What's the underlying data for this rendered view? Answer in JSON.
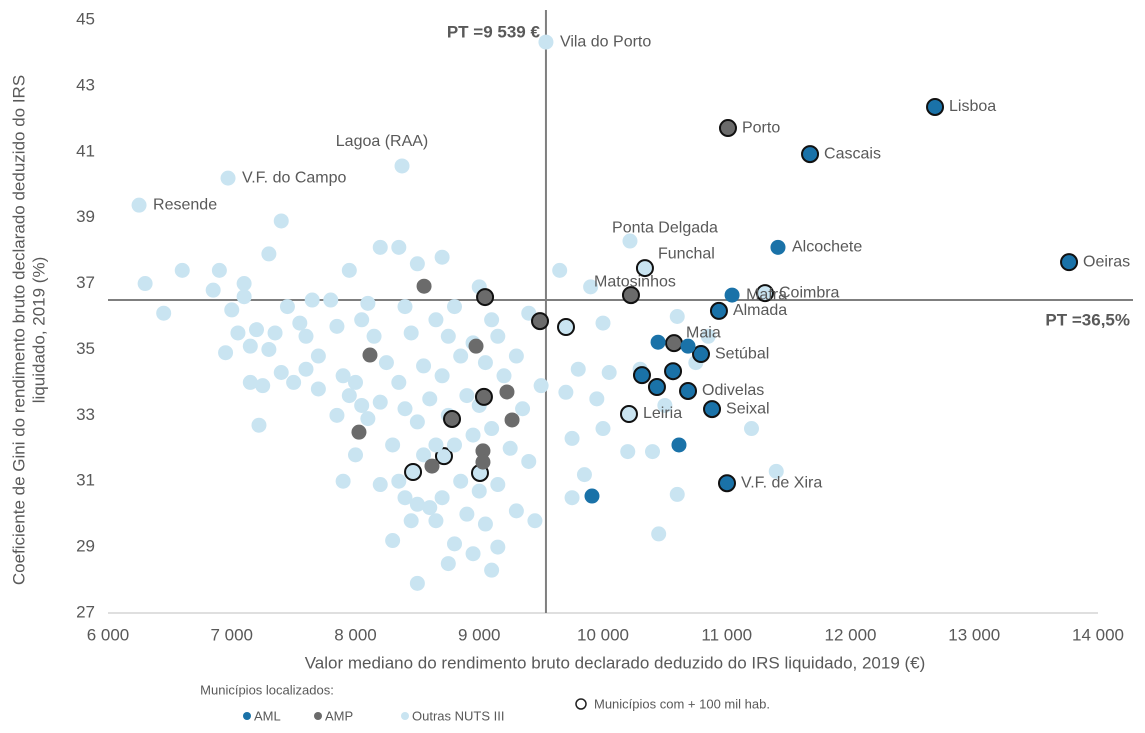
{
  "chart_data": {
    "type": "scatter",
    "xlabel": "Valor mediano do rendimento bruto declarado deduzido do IRS liquidado, 2019 (€)",
    "ylabel": [
      "Coeficiente de Gini do rendimento bruto declarado deduzido do IRS",
      "liquidado, 2019 (%)"
    ],
    "xlim": [
      6000,
      14000
    ],
    "xticks": [
      {
        "value": 6000,
        "label": "6 000"
      },
      {
        "value": 7000,
        "label": "7 000"
      },
      {
        "value": 8000,
        "label": "8 000"
      },
      {
        "value": 9000,
        "label": "9 000"
      },
      {
        "value": 10000,
        "label": "10 000"
      },
      {
        "value": 11000,
        "label": "11 000"
      },
      {
        "value": 12000,
        "label": "12 000"
      },
      {
        "value": 13000,
        "label": "13 000"
      },
      {
        "value": 14000,
        "label": "14 000"
      }
    ],
    "ylim": [
      27,
      45
    ],
    "yticks": [
      27,
      29,
      31,
      33,
      35,
      37,
      39,
      41,
      43,
      45
    ],
    "grid": false,
    "reference_lines": {
      "x": 9539,
      "x_label": "PT =9 539 €",
      "y": 36.5,
      "y_label": "PT =36,5%",
      "color": "#7f7f7f"
    },
    "legend_title": "Municípios localizados:",
    "outline_legend": "Municípios com + 100 mil hab.",
    "series": [
      {
        "name": "Outras NUTS III",
        "color": "#c9e4f1",
        "x": [
          10339,
          11309,
          10210,
          9701,
          8715,
          8465,
          9006,
          9539,
          8376,
          6970,
          6251,
          10218,
          6300,
          6450,
          6600,
          6850,
          6900,
          6950,
          7000,
          7050,
          7100,
          7100,
          7150,
          7150,
          7200,
          7250,
          7220,
          7300,
          7300,
          7350,
          7400,
          7400,
          7450,
          7500,
          7550,
          7600,
          7600,
          7650,
          7700,
          7700,
          7800,
          7850,
          7850,
          7900,
          7900,
          7950,
          7950,
          8000,
          8000,
          8050,
          8050,
          8100,
          8100,
          8150,
          8200,
          8200,
          8200,
          8250,
          8300,
          8300,
          8350,
          8350,
          8350,
          8400,
          8400,
          8400,
          8450,
          8450,
          8500,
          8500,
          8500,
          8500,
          8550,
          8550,
          8600,
          8600,
          8650,
          8650,
          8650,
          8700,
          8700,
          8700,
          8750,
          8750,
          8750,
          8800,
          8800,
          8800,
          8850,
          8850,
          8900,
          8900,
          8950,
          8950,
          8950,
          9000,
          9000,
          9000,
          9050,
          9050,
          9100,
          9100,
          9100,
          9150,
          9150,
          9150,
          9200,
          9250,
          9300,
          9300,
          9350,
          9400,
          9400,
          9450,
          9500,
          9650,
          9700,
          9750,
          9750,
          9800,
          9850,
          9900,
          9950,
          10000,
          10000,
          10050,
          10200,
          10300,
          10400,
          10450,
          10500,
          10600,
          10600,
          10750,
          10850,
          11200,
          11400
        ],
        "values": [
          37.47,
          36.71,
          33.04,
          35.68,
          31.76,
          31.28,
          31.25,
          44.33,
          40.57,
          40.2,
          39.38,
          38.29,
          37.0,
          36.1,
          37.4,
          36.8,
          37.4,
          34.9,
          36.2,
          35.5,
          37.0,
          36.6,
          35.1,
          34.0,
          35.6,
          33.9,
          32.7,
          37.9,
          35.0,
          35.5,
          38.9,
          34.3,
          36.3,
          34.0,
          35.8,
          34.4,
          35.4,
          36.5,
          34.8,
          33.8,
          36.5,
          35.7,
          33.0,
          34.2,
          31.0,
          37.4,
          33.6,
          34.0,
          31.8,
          35.9,
          33.3,
          36.4,
          32.9,
          35.4,
          38.1,
          33.4,
          30.9,
          34.6,
          32.1,
          29.2,
          38.1,
          34.0,
          31.0,
          36.3,
          33.2,
          30.5,
          35.5,
          29.8,
          37.6,
          32.8,
          30.3,
          27.9,
          34.5,
          31.8,
          33.5,
          30.2,
          35.9,
          32.1,
          29.8,
          37.8,
          34.2,
          30.5,
          35.4,
          33.0,
          28.5,
          36.3,
          32.1,
          29.1,
          34.8,
          31.0,
          33.6,
          30.0,
          35.2,
          32.4,
          28.8,
          36.9,
          33.3,
          30.7,
          34.6,
          29.7,
          35.9,
          32.6,
          28.3,
          35.4,
          30.9,
          29.0,
          34.2,
          32.0,
          34.8,
          30.1,
          33.2,
          36.1,
          31.6,
          29.8,
          33.9,
          37.4,
          33.7,
          32.3,
          30.5,
          34.4,
          31.2,
          36.9,
          33.5,
          35.8,
          32.6,
          34.3,
          31.9,
          34.4,
          31.9,
          29.4,
          33.3,
          36.0,
          30.6,
          34.6,
          35.4,
          32.6,
          31.3
        ],
        "labels": [
          "Funchal",
          "Coimbra",
          "Leiria",
          null,
          null,
          null,
          null,
          "Vila do Porto",
          "Lagoa (RAA)",
          "V.F. do Campo",
          "Resende",
          "Ponta Delgada",
          null,
          null,
          null,
          null,
          null,
          null,
          null,
          null,
          null,
          null,
          null,
          null,
          null,
          null,
          null,
          null,
          null,
          null,
          null,
          null,
          null,
          null,
          null,
          null,
          null,
          null,
          null,
          null,
          null,
          null,
          null,
          null,
          null,
          null,
          null,
          null,
          null,
          null,
          null,
          null,
          null,
          null,
          null,
          null,
          null,
          null,
          null,
          null,
          null,
          null,
          null,
          null,
          null,
          null,
          null,
          null,
          null,
          null,
          null,
          null,
          null,
          null,
          null,
          null,
          null,
          null,
          null,
          null,
          null,
          null,
          null,
          null,
          null,
          null,
          null,
          null,
          null,
          null,
          null,
          null,
          null,
          null,
          null,
          null,
          null,
          null,
          null,
          null,
          null,
          null,
          null,
          null,
          null,
          null,
          null,
          null,
          null,
          null,
          null,
          null,
          null,
          null,
          null,
          null,
          null,
          null,
          null,
          null,
          null,
          null,
          null,
          null,
          null,
          null,
          null,
          null,
          null,
          null,
          null,
          null,
          null,
          null,
          null,
          null,
          null
        ],
        "outlined": [
          true,
          true,
          true,
          true,
          true,
          true,
          true,
          false,
          false,
          false,
          false,
          false,
          false,
          false,
          false,
          false,
          false,
          false,
          false,
          false,
          false,
          false,
          false,
          false,
          false,
          false,
          false,
          false,
          false,
          false,
          false,
          false,
          false,
          false,
          false,
          false,
          false,
          false,
          false,
          false,
          false,
          false,
          false,
          false,
          false,
          false,
          false,
          false,
          false,
          false,
          false,
          false,
          false,
          false,
          false,
          false,
          false,
          false,
          false,
          false,
          false,
          false,
          false,
          false,
          false,
          false,
          false,
          false,
          false,
          false,
          false,
          false,
          false,
          false,
          false,
          false,
          false,
          false,
          false,
          false,
          false,
          false,
          false,
          false,
          false,
          false,
          false,
          false,
          false,
          false,
          false,
          false,
          false,
          false,
          false,
          false,
          false,
          false,
          false,
          false,
          false,
          false,
          false,
          false,
          false,
          false,
          false,
          false,
          false,
          false,
          false,
          false,
          false,
          false,
          false,
          false,
          false,
          false,
          false,
          false,
          false,
          false,
          false,
          false,
          false,
          false,
          false,
          false,
          false,
          false,
          false,
          false,
          false,
          false,
          false,
          false,
          false
        ]
      },
      {
        "name": "AMP",
        "color": "#6b6b6b",
        "x": [
          11010,
          10226,
          10574,
          9491,
          9047,
          8554,
          8117,
          8974,
          9224,
          9038,
          8780,
          9265,
          8028,
          9030,
          9030,
          8618
        ],
        "values": [
          41.72,
          36.65,
          35.19,
          35.86,
          36.59,
          36.92,
          34.83,
          35.1,
          33.71,
          33.56,
          32.89,
          32.86,
          32.49,
          31.92,
          31.58,
          31.46
        ],
        "labels": [
          "Porto",
          "Matosinhos",
          "Maia",
          null,
          null,
          null,
          null,
          null,
          null,
          null,
          null,
          null,
          null,
          null,
          null,
          null
        ],
        "outlined": [
          true,
          true,
          true,
          true,
          true,
          false,
          false,
          false,
          false,
          true,
          true,
          false,
          false,
          false,
          false,
          false
        ]
      },
      {
        "name": "AML",
        "color": "#1a72a8",
        "x": [
          12683,
          13766,
          11673,
          11414,
          11043,
          10937,
          10792,
          10687,
          10881,
          11002,
          10315,
          10566,
          10436,
          10687,
          10445,
          10614,
          9911
        ],
        "values": [
          42.36,
          37.65,
          40.93,
          38.1,
          36.65,
          36.17,
          34.86,
          33.74,
          33.19,
          30.94,
          34.22,
          34.34,
          33.86,
          35.1,
          35.22,
          32.1,
          30.55
        ],
        "labels": [
          "Lisboa",
          "Oeiras",
          "Cascais",
          "Alcochete",
          "Mafra",
          "Almada",
          "Setúbal",
          "Odivelas",
          "Seixal",
          "V.F. de Xira",
          null,
          null,
          null,
          null,
          null,
          null,
          null
        ],
        "outlined": [
          true,
          true,
          true,
          false,
          false,
          true,
          true,
          true,
          true,
          true,
          true,
          true,
          true,
          false,
          false,
          false,
          false
        ]
      }
    ]
  }
}
